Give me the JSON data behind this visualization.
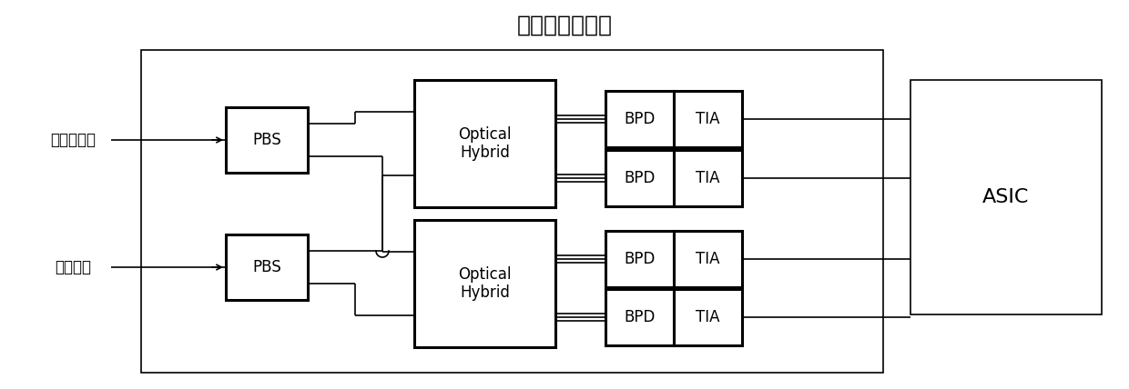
{
  "title": "集成相干接收机",
  "title_fontsize": 18,
  "label_signal": "接收光信号",
  "label_lo": "本振光源",
  "label_asic": "ASIC",
  "label_pbs": "PBS",
  "label_optical_hybrid": "Optical\nHybrid",
  "label_bpd": "BPD",
  "label_tia": "TIA",
  "bg_color": "#ffffff",
  "box_color": "#000000",
  "thin_lw": 1.2,
  "thick_lw": 2.2,
  "fig_width": 12.4,
  "fig_height": 4.28,
  "dpi": 100
}
